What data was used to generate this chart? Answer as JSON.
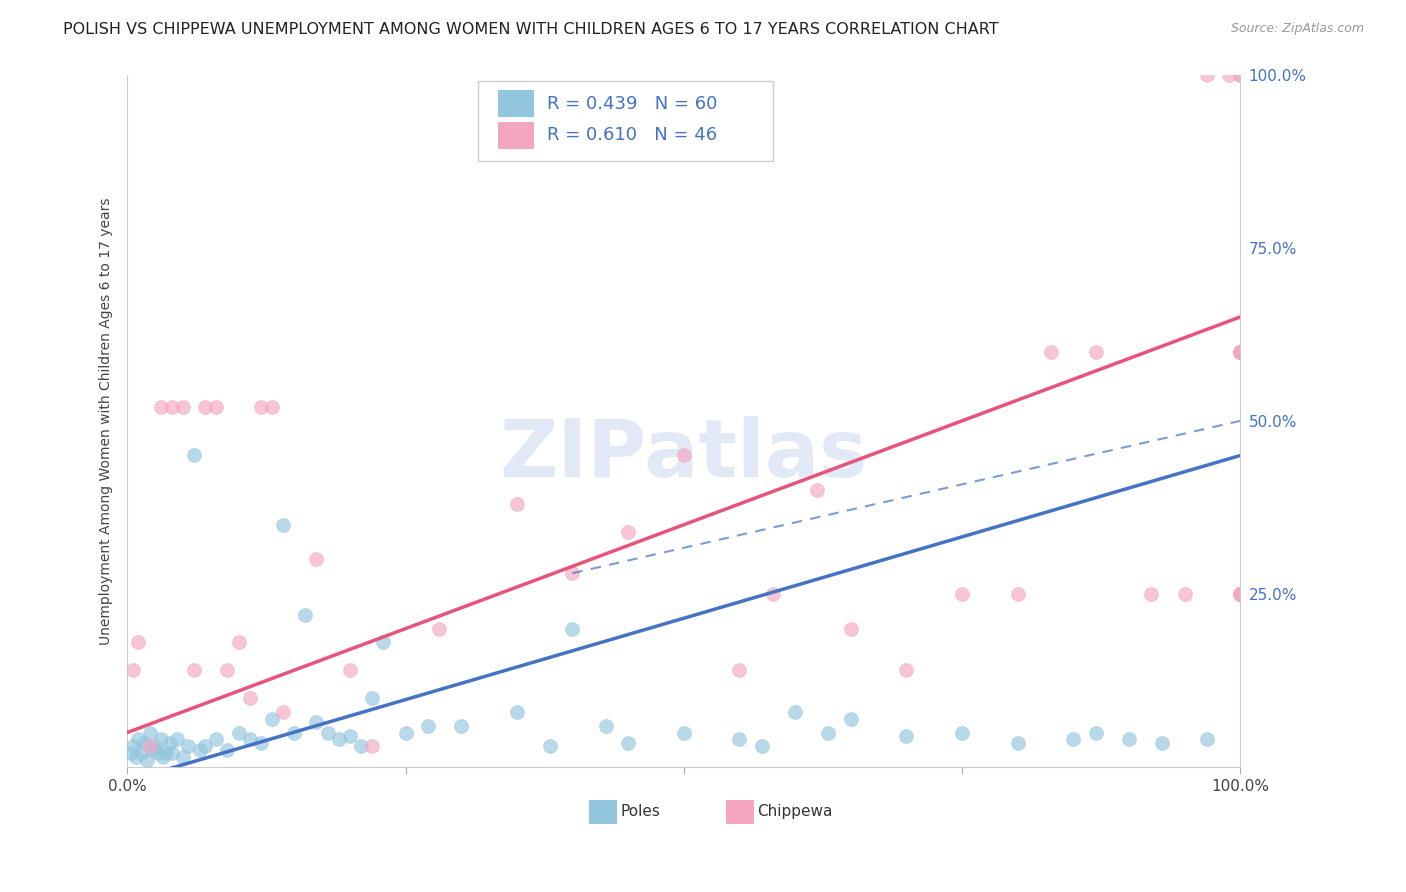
{
  "title": "POLISH VS CHIPPEWA UNEMPLOYMENT AMONG WOMEN WITH CHILDREN AGES 6 TO 17 YEARS CORRELATION CHART",
  "source": "Source: ZipAtlas.com",
  "ylabel": "Unemployment Among Women with Children Ages 6 to 17 years",
  "legend_label1": "Poles",
  "legend_label2": "Chippewa",
  "R1": 0.439,
  "N1": 60,
  "R2": 0.61,
  "N2": 46,
  "color_blue": "#92c5de",
  "color_pink": "#f4a6c0",
  "color_blue_line": "#4472c4",
  "color_pink_line": "#e8537a",
  "color_blue_text": "#4472c4",
  "watermark_text": "ZIPatlas",
  "watermark_color": "#c8d8ee",
  "xlim": [
    0,
    100
  ],
  "ylim": [
    0,
    100
  ],
  "yticks": [
    0,
    25,
    50,
    75,
    100
  ],
  "xticks": [
    0,
    25,
    50,
    75,
    100
  ],
  "poles_x": [
    0.3,
    0.5,
    0.8,
    1.0,
    1.2,
    1.5,
    1.8,
    2.0,
    2.2,
    2.5,
    2.8,
    3.0,
    3.2,
    3.5,
    3.8,
    4.0,
    4.5,
    5.0,
    5.5,
    6.0,
    6.5,
    7.0,
    8.0,
    9.0,
    10.0,
    11.0,
    12.0,
    13.0,
    14.0,
    15.0,
    16.0,
    17.0,
    18.0,
    19.0,
    20.0,
    21.0,
    22.0,
    23.0,
    25.0,
    27.0,
    30.0,
    35.0,
    38.0,
    40.0,
    43.0,
    45.0,
    50.0,
    55.0,
    57.0,
    60.0,
    63.0,
    65.0,
    70.0,
    75.0,
    80.0,
    85.0,
    87.0,
    90.0,
    93.0,
    97.0
  ],
  "poles_y": [
    2.0,
    3.0,
    1.5,
    4.0,
    2.0,
    3.5,
    1.0,
    5.0,
    2.5,
    3.0,
    2.0,
    4.0,
    1.5,
    2.0,
    3.5,
    2.0,
    4.0,
    1.5,
    3.0,
    45.0,
    2.5,
    3.0,
    4.0,
    2.5,
    5.0,
    4.0,
    3.5,
    7.0,
    35.0,
    5.0,
    22.0,
    6.5,
    5.0,
    4.0,
    4.5,
    3.0,
    10.0,
    18.0,
    5.0,
    6.0,
    6.0,
    8.0,
    3.0,
    20.0,
    6.0,
    3.5,
    5.0,
    4.0,
    3.0,
    8.0,
    5.0,
    7.0,
    4.5,
    5.0,
    3.5,
    4.0,
    5.0,
    4.0,
    3.5,
    4.0
  ],
  "chippewa_x": [
    0.5,
    1.0,
    2.0,
    3.0,
    4.0,
    5.0,
    6.0,
    7.0,
    8.0,
    9.0,
    10.0,
    11.0,
    12.0,
    13.0,
    14.0,
    17.0,
    20.0,
    22.0,
    28.0,
    35.0,
    40.0,
    45.0,
    50.0,
    55.0,
    58.0,
    62.0,
    65.0,
    70.0,
    75.0,
    80.0,
    83.0,
    87.0,
    92.0,
    95.0,
    97.0,
    99.0,
    100.0,
    100.0,
    100.0,
    100.0,
    100.0,
    100.0,
    100.0,
    100.0,
    100.0,
    100.0
  ],
  "chippewa_y": [
    14.0,
    18.0,
    3.0,
    52.0,
    52.0,
    52.0,
    14.0,
    52.0,
    52.0,
    14.0,
    18.0,
    10.0,
    52.0,
    52.0,
    8.0,
    30.0,
    14.0,
    3.0,
    20.0,
    38.0,
    28.0,
    34.0,
    45.0,
    14.0,
    25.0,
    40.0,
    20.0,
    14.0,
    25.0,
    25.0,
    60.0,
    60.0,
    25.0,
    25.0,
    100.0,
    100.0,
    100.0,
    60.0,
    60.0,
    60.0,
    60.0,
    25.0,
    25.0,
    25.0,
    25.0,
    100.0
  ],
  "blue_line_x0": 0,
  "blue_line_y0": -2,
  "blue_line_x1": 100,
  "blue_line_y1": 45,
  "pink_line_x0": 0,
  "pink_line_y0": 5,
  "pink_line_x1": 100,
  "pink_line_y1": 65,
  "dash_line_x0": 40,
  "dash_line_y0": 28,
  "dash_line_x1": 100,
  "dash_line_y1": 50
}
